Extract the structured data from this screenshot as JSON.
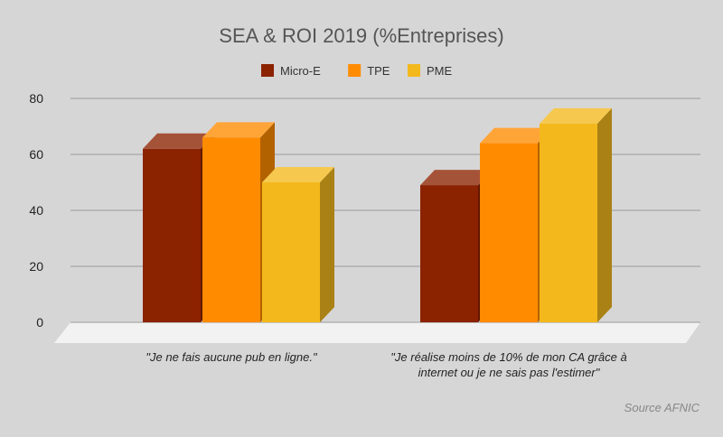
{
  "chart_data": {
    "type": "bar",
    "title": "SEA & ROI 2019 (%Entreprises)",
    "source": "Source AFNIC",
    "categories": [
      [
        "\"Je ne fais aucune pub en ligne.\""
      ],
      [
        "\"Je réalise moins de 10% de mon CA grâce à",
        "internet ou je ne sais pas l'estimer\""
      ]
    ],
    "series": [
      {
        "name": "Micro-E",
        "values": [
          62,
          49
        ],
        "color": "#8b2200"
      },
      {
        "name": "TPE",
        "values": [
          66,
          64
        ],
        "color": "#ff8c00"
      },
      {
        "name": "PME",
        "values": [
          50,
          71
        ],
        "color": "#f3b81c"
      }
    ],
    "ylim": [
      0,
      80
    ],
    "yticks": [
      0,
      20,
      40,
      60,
      80
    ],
    "grid": true,
    "legend": "top",
    "three_d": true
  }
}
